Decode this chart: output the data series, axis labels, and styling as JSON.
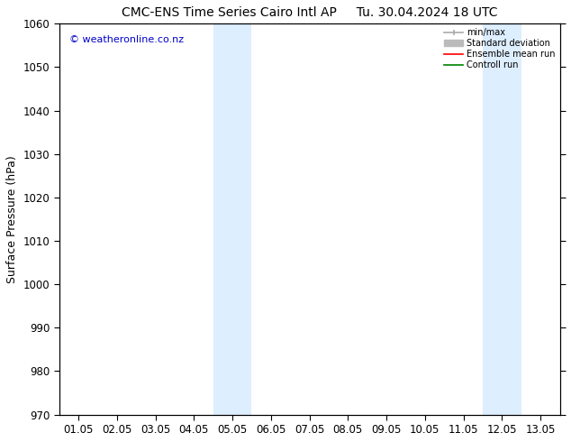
{
  "title_left": "CMC-ENS Time Series Cairo Intl AP",
  "title_right": "Tu. 30.04.2024 18 UTC",
  "ylabel": "Surface Pressure (hPa)",
  "xlim": [
    0.5,
    13.5
  ],
  "ylim": [
    970,
    1060
  ],
  "yticks": [
    970,
    980,
    990,
    1000,
    1010,
    1020,
    1030,
    1040,
    1050,
    1060
  ],
  "xtick_labels": [
    "01.05",
    "02.05",
    "03.05",
    "04.05",
    "05.05",
    "06.05",
    "07.05",
    "08.05",
    "09.05",
    "10.05",
    "11.05",
    "12.05",
    "13.05"
  ],
  "xtick_positions": [
    1,
    2,
    3,
    4,
    5,
    6,
    7,
    8,
    9,
    10,
    11,
    12,
    13
  ],
  "shaded_regions": [
    {
      "x_start": 4.5,
      "x_end": 5.5
    },
    {
      "x_start": 11.5,
      "x_end": 12.5
    }
  ],
  "shade_color": "#ddeeff",
  "watermark_text": "© weatheronline.co.nz",
  "watermark_color": "#0000cc",
  "legend_labels": [
    "min/max",
    "Standard deviation",
    "Ensemble mean run",
    "Controll run"
  ],
  "legend_colors": [
    "#aaaaaa",
    "#bbbbbb",
    "#ff0000",
    "#008000"
  ],
  "bg_color": "#ffffff",
  "spine_color": "#000000",
  "title_fontsize": 10,
  "label_fontsize": 9,
  "tick_fontsize": 8.5,
  "watermark_fontsize": 8
}
